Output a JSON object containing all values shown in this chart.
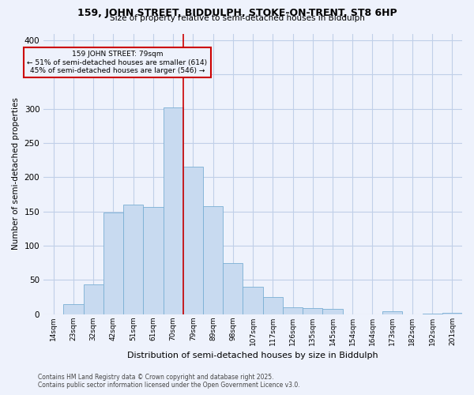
{
  "title_line1": "159, JOHN STREET, BIDDULPH, STOKE-ON-TRENT, ST8 6HP",
  "title_line2": "Size of property relative to semi-detached houses in Biddulph",
  "xlabel": "Distribution of semi-detached houses by size in Biddulph",
  "ylabel": "Number of semi-detached properties",
  "annotation_title": "159 JOHN STREET: 79sqm",
  "annotation_line2": "← 51% of semi-detached houses are smaller (614)",
  "annotation_line3": "45% of semi-detached houses are larger (546) →",
  "footer_line1": "Contains HM Land Registry data © Crown copyright and database right 2025.",
  "footer_line2": "Contains public sector information licensed under the Open Government Licence v3.0.",
  "bar_labels": [
    "14sqm",
    "23sqm",
    "32sqm",
    "42sqm",
    "51sqm",
    "61sqm",
    "70sqm",
    "79sqm",
    "89sqm",
    "98sqm",
    "107sqm",
    "117sqm",
    "126sqm",
    "135sqm",
    "145sqm",
    "154sqm",
    "164sqm",
    "173sqm",
    "182sqm",
    "192sqm",
    "201sqm"
  ],
  "bar_values": [
    0,
    15,
    43,
    148,
    160,
    157,
    302,
    215,
    158,
    74,
    40,
    25,
    10,
    9,
    8,
    0,
    0,
    4,
    0,
    1,
    2
  ],
  "highlight_index": 6,
  "bar_color": "#c8daf0",
  "bar_edge_color": "#7aafd4",
  "highlight_line_color": "#cc0000",
  "annotation_box_edge": "#cc0000",
  "grid_color": "#c0cfe8",
  "background_color": "#eef2fc",
  "ylim": [
    0,
    410
  ],
  "yticks": [
    0,
    50,
    100,
    150,
    200,
    250,
    300,
    350,
    400
  ]
}
